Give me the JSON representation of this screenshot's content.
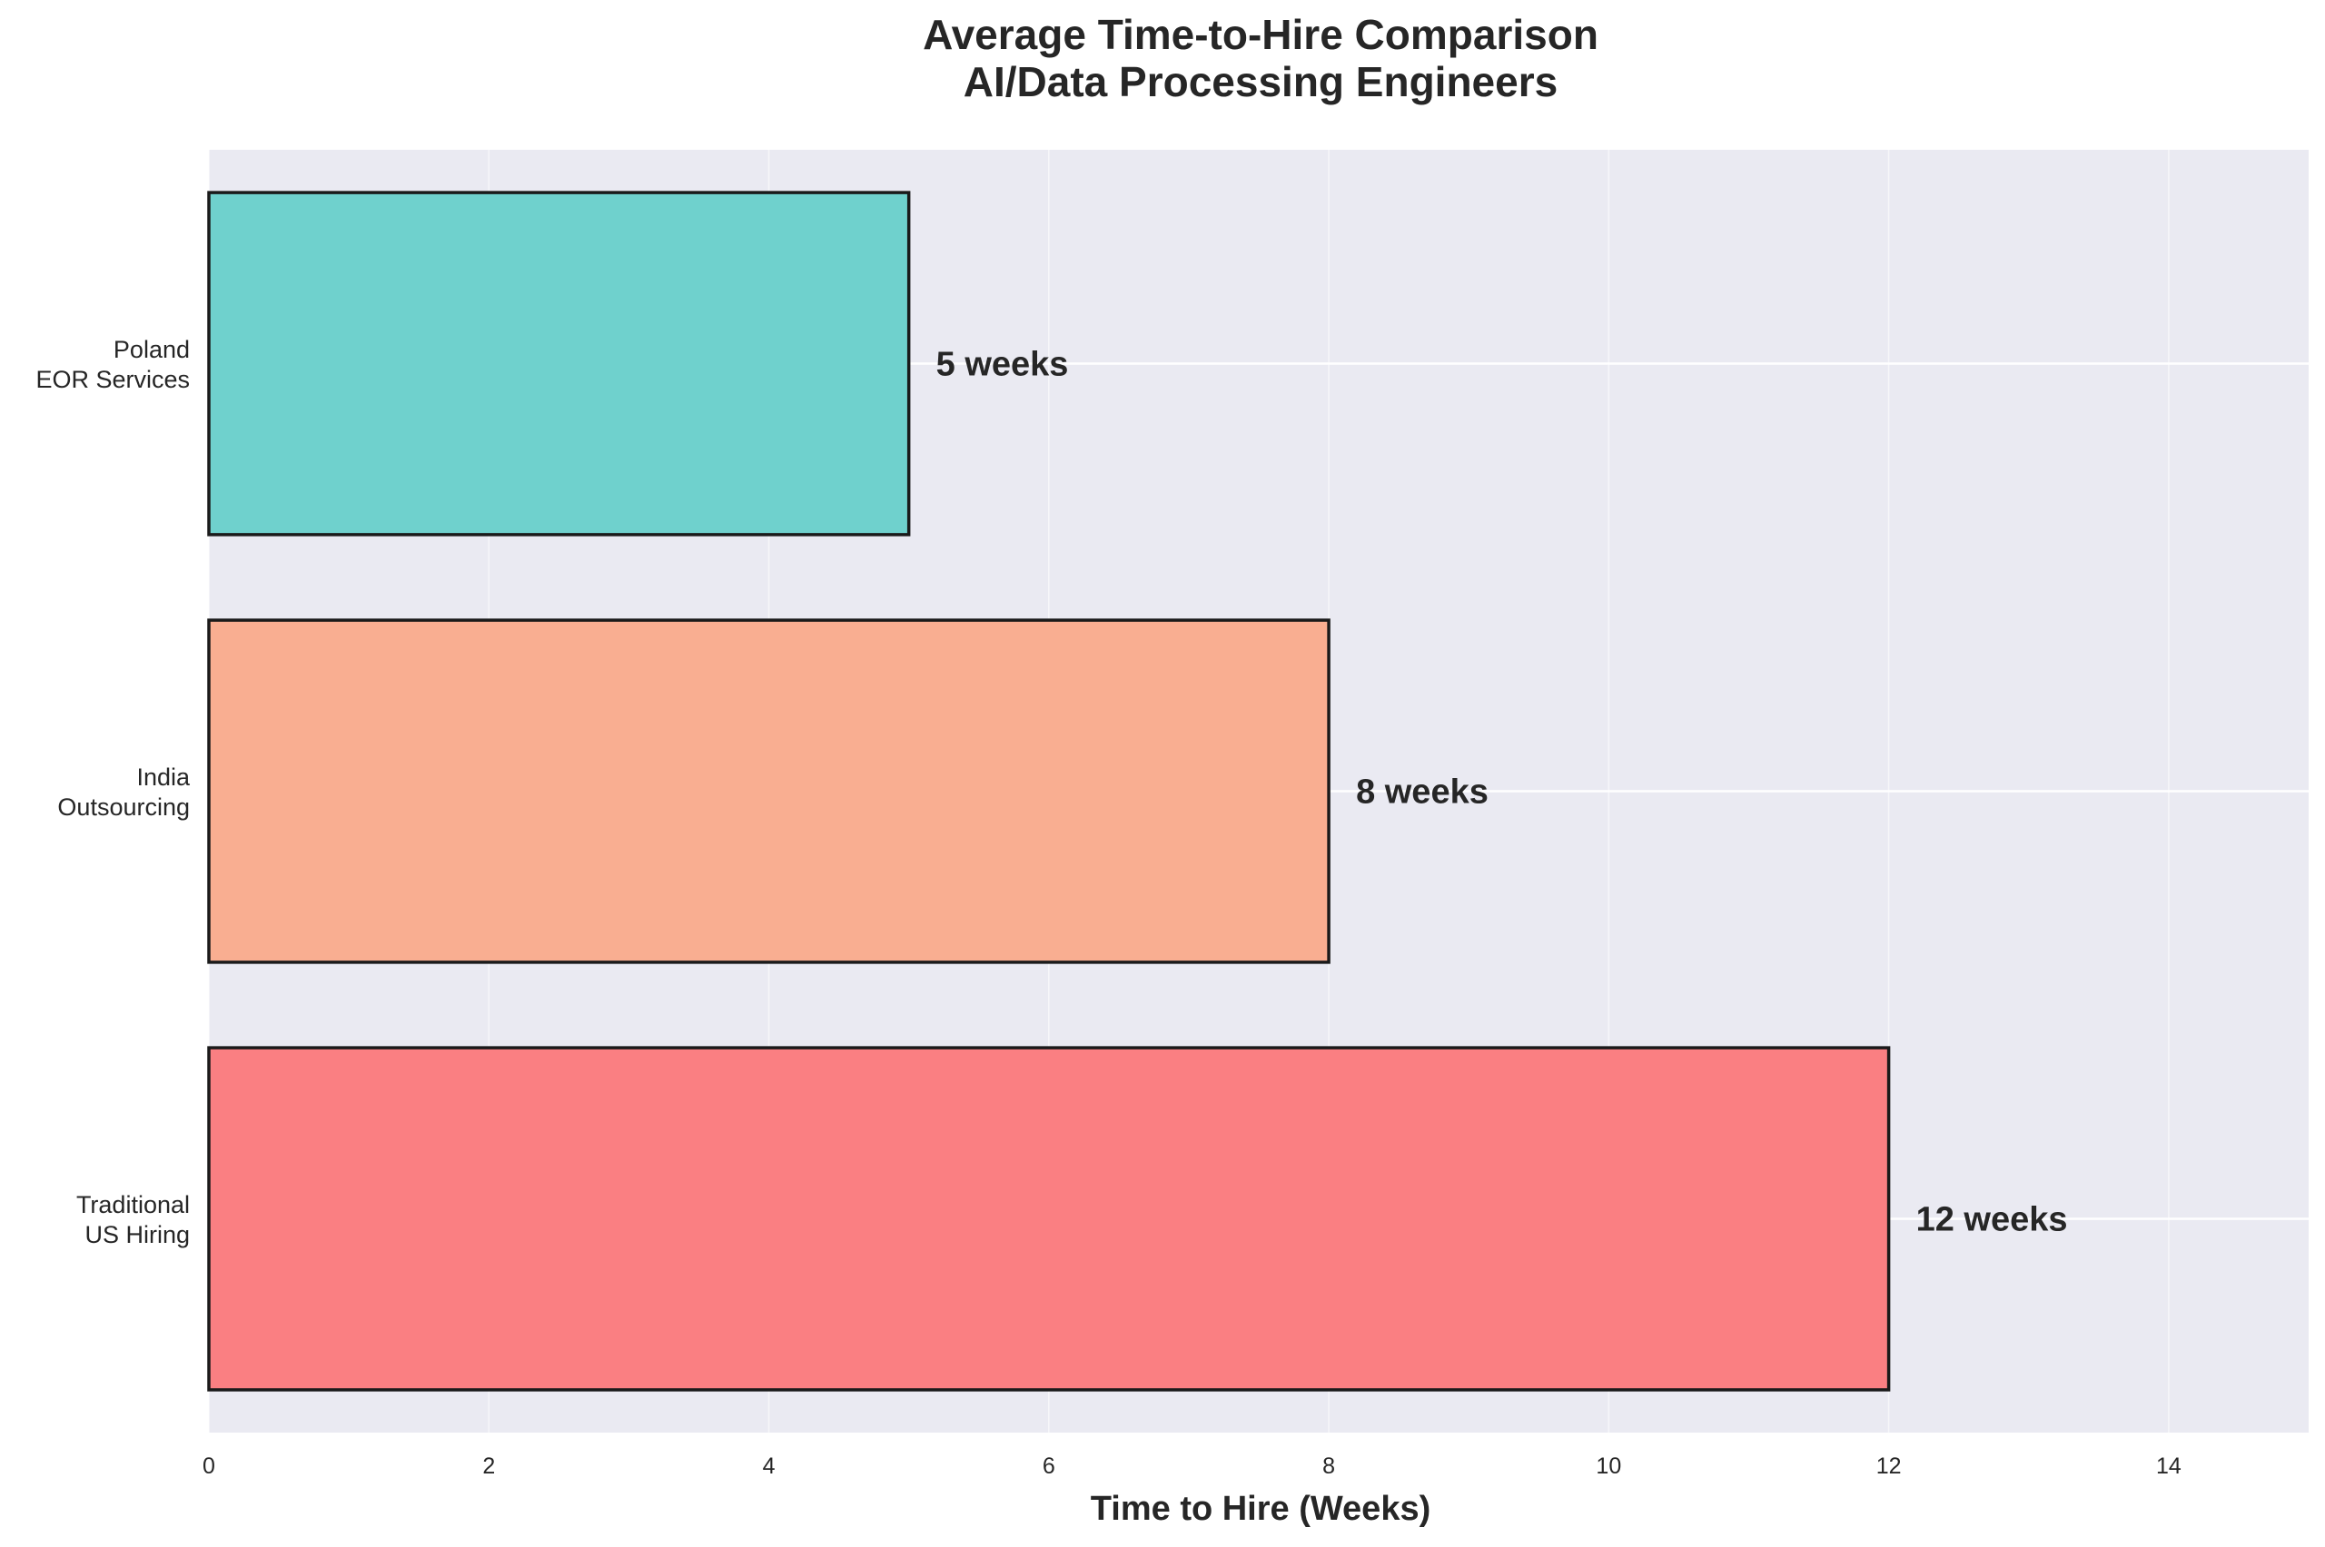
{
  "chart_data": {
    "type": "bar",
    "orientation": "horizontal",
    "title": [
      "Average Time-to-Hire Comparison",
      "AI/Data Processing Engineers"
    ],
    "xlabel": "Time to Hire (Weeks)",
    "ylabel": "",
    "xlim": [
      0,
      15
    ],
    "xticks": [
      0,
      2,
      4,
      6,
      8,
      10,
      12,
      14
    ],
    "grid": true,
    "categories": [
      {
        "lines": [
          "Traditional",
          "US Hiring"
        ],
        "value": 12,
        "label": "12 weeks",
        "color": "#FA7F82"
      },
      {
        "lines": [
          "India",
          "Outsourcing"
        ],
        "value": 8,
        "label": "8 weeks",
        "color": "#F9AE91"
      },
      {
        "lines": [
          "Poland",
          "EOR Services"
        ],
        "value": 5,
        "label": "5 weeks",
        "color": "#6FD1CD"
      }
    ],
    "colors": {
      "plot_background": "#EAEAF2",
      "grid": "#FFFFFF",
      "bar_edge": "#1A1A1A",
      "text": "#262626"
    }
  }
}
